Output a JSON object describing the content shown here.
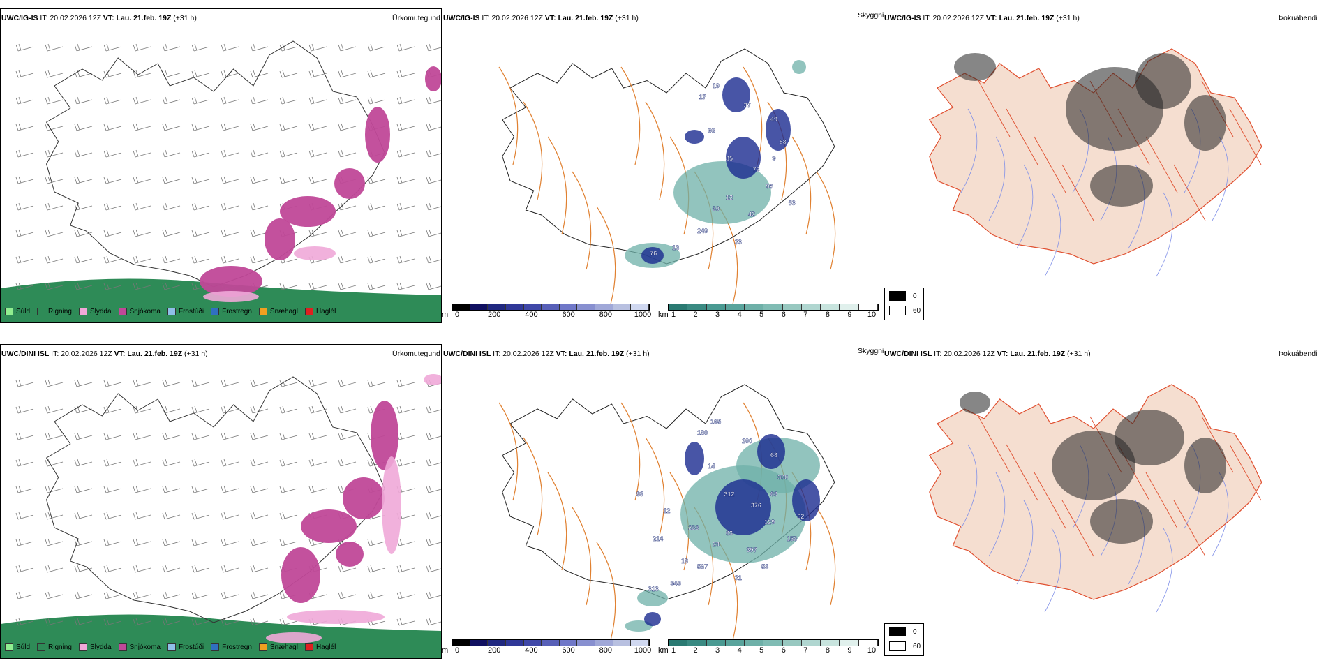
{
  "rows": [
    {
      "model": "UWC/IG-IS",
      "it_label": "IT:",
      "it_value": "20.02.2026 12Z",
      "vt_label": "VT:",
      "vt_value": "Lau. 21.feb. 19Z",
      "lead": "(+31 h)",
      "panel_titles": [
        "Úrkomutegund",
        "Skyggni",
        "Þokuábendi"
      ],
      "visibility_labels": [
        "17",
        "19",
        "37",
        "49",
        "66",
        "88",
        "85",
        "73",
        "9",
        "95",
        "12",
        "60",
        "249",
        "13",
        "76",
        "42",
        "53",
        "33"
      ]
    },
    {
      "model": "UWC/DINI ISL",
      "it_label": "IT:",
      "it_value": "20.02.2026 12Z",
      "vt_label": "VT:",
      "vt_value": "Lau. 21.feb. 19Z",
      "lead": "(+31 h)",
      "panel_titles": [
        "Úrkomutegund",
        "Skyggni",
        "Þokuábendi"
      ],
      "visibility_labels": [
        "180",
        "165",
        "200",
        "68",
        "14",
        "300",
        "312",
        "376",
        "69",
        "129",
        "63",
        "23",
        "567",
        "343",
        "313",
        "397",
        "158",
        "31",
        "233",
        "12",
        "98",
        "53",
        "214",
        "18",
        "62"
      ]
    }
  ],
  "precip_legend": [
    {
      "label": "Súld",
      "color": "#90ee90"
    },
    {
      "label": "Rigning",
      "color": "#2e8b57"
    },
    {
      "label": "Slydda",
      "color": "#f0a8d8"
    },
    {
      "label": "Snjókoma",
      "color": "#c04898"
    },
    {
      "label": "Frostúði",
      "color": "#8fbfe8"
    },
    {
      "label": "Frostregn",
      "color": "#3070c0"
    },
    {
      "label": "Snæhagl",
      "color": "#f0a020"
    },
    {
      "label": "Haglél",
      "color": "#e02020"
    }
  ],
  "cloudbase_bar": {
    "unit": "m",
    "ticks": [
      "0",
      "200",
      "400",
      "600",
      "800",
      "1000"
    ],
    "colors": [
      "#000000",
      "#101060",
      "#202880",
      "#303898",
      "#4048a8",
      "#5860b8",
      "#7078c8",
      "#8890d0",
      "#a0a8d8",
      "#b8c0e0",
      "#d0d8f0"
    ]
  },
  "visibility_bar": {
    "unit": "km",
    "ticks": [
      "1",
      "2",
      "3",
      "4",
      "5",
      "6",
      "7",
      "8",
      "9",
      "10"
    ],
    "colors": [
      "#2a7a72",
      "#3a8a82",
      "#4a9a92",
      "#5aa49c",
      "#6eb0a8",
      "#80bcb4",
      "#98c8c0",
      "#b0d6d0",
      "#c8e4de",
      "#e0f0ec",
      "#ffffff"
    ]
  },
  "fog_legend": [
    {
      "value": "0",
      "color": "#000000"
    },
    {
      "value": "60",
      "color": "#ffffff"
    }
  ],
  "colors": {
    "sea_green": "#2e8b57",
    "snow": "#c04898",
    "sleet": "#f0a8d8",
    "road": "#e08030",
    "vis_dark": "#1a2a90",
    "vis_teal": "#6eb0a8",
    "land_fill": "#f5ded0",
    "river": "#8090e8",
    "road_red": "#e05030"
  },
  "icons": {
    "wind_barb": "wind-barb-icon"
  }
}
